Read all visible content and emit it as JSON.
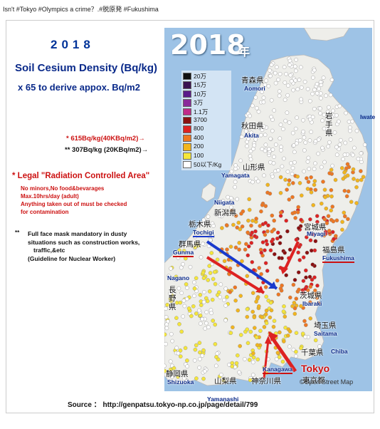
{
  "post": {
    "caption": "Isn't #Tokyo #Olympics a crime？.#脱原発 #Fukushima"
  },
  "left_panel": {
    "year": "2018",
    "title": "Soil Cesium Density (Bq/kg)",
    "subtitle": "x 65 to derive appox. Bq/m2",
    "note_615": "* 615Bq/kg(40KBq/m2)→",
    "note_307": "** 307Bq/kg (20KBq/m2)→",
    "legal_title": "* Legal \"Radiation Controlled Area\"",
    "legal_lines": [
      "No minors,No food&bevarages",
      "Max.10hrs/day (adult)",
      "Anything taken out of must be checked",
      "for contamination"
    ],
    "mask_bullet": "**",
    "mask_lines": [
      "Full face mask mandatory in dusty",
      "situations such as construction works,",
      "traffic,&etc",
      "(Guideline for Nuclear Worker)"
    ],
    "source": "Source ： http://genpatsu.tokyo-np.co.jp/page/detail/799"
  },
  "map": {
    "year_large": "2018",
    "year_kanji": "年",
    "credit": "©Open Street Map",
    "sea_color": "#9ec3e6",
    "land_color": "#eeeeea",
    "legend": [
      {
        "label": "20万",
        "color": "#111111"
      },
      {
        "label": "15万",
        "color": "#3a1250"
      },
      {
        "label": "10万",
        "color": "#5a1a8a"
      },
      {
        "label": "3万",
        "color": "#8a2a9a"
      },
      {
        "label": "1.1万",
        "color": "#c02a8a"
      },
      {
        "label": "3700",
        "color": "#8a1010"
      },
      {
        "label": "800",
        "color": "#dd2222"
      },
      {
        "label": "400",
        "color": "#ee7722"
      },
      {
        "label": "200",
        "color": "#f2b51e"
      },
      {
        "label": "100",
        "color": "#f5e63a"
      },
      {
        "label": "50以下/Kg",
        "color": "#ffffff"
      }
    ],
    "prefectures": {
      "aomori_jp": "青森県",
      "aomori_en": "Aomori",
      "iwate_jp": "岩手県",
      "iwate_en": "Iwate",
      "akita_jp": "秋田県",
      "akita_en": "Akita",
      "yamagata_jp": "山形県",
      "yamagata_en": "Yamagata",
      "niigata_en": "Niigata",
      "niigata_jp": "新潟県",
      "miyagi_jp": "宮城県",
      "miyagi_en": "Miyagi",
      "tochigi_jp": "栃木県",
      "tochigi_en": "Tochigi",
      "gunma_jp": "群馬県",
      "gunma_en": "Gunma",
      "fukushima_jp": "福島県",
      "fukushima_en": "Fukushima",
      "nagano_en": "Nagano",
      "nagano_jp": "長野県",
      "ibaraki_jp": "茨城県",
      "ibaraki_en": "Ibaraki",
      "saitama_jp": "埼玉県",
      "saitama_en": "Saitama",
      "chiba_jp": "千葉県",
      "chiba_en": "Chiba",
      "tokyo_en": "Tokyo",
      "tokyo_jp": "東京都",
      "shizuoka_jp": "静岡県",
      "shizuoka_en": "Shizuoka",
      "yamanashi_jp": "山梨県",
      "yamanashi_en": "Yamanashi",
      "kanagawa_en": "Kanagawa",
      "kanagawa_jp": "神奈川県"
    }
  }
}
